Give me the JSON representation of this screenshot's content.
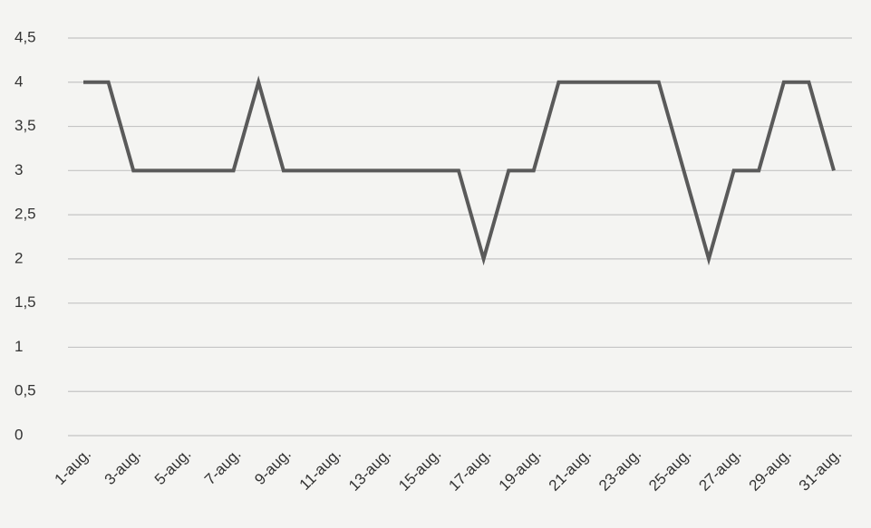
{
  "chart_data": {
    "type": "line",
    "categories": [
      "1-aug.",
      null,
      "3-aug.",
      null,
      "5-aug.",
      null,
      "7-aug.",
      null,
      "9-aug.",
      null,
      "11-aug.",
      null,
      "13-aug.",
      null,
      "15-aug.",
      null,
      "17-aug.",
      null,
      "19-aug.",
      null,
      "21-aug.",
      null,
      "23-aug.",
      null,
      "25-aug.",
      null,
      "27-aug.",
      null,
      "29-aug.",
      null,
      "31-aug."
    ],
    "series": [
      {
        "color": "#5a5a5a",
        "values": [
          4,
          4,
          3,
          3,
          3,
          3,
          3,
          4,
          3,
          3,
          3,
          3,
          3,
          3,
          3,
          3,
          2,
          3,
          3,
          4,
          4,
          4,
          4,
          4,
          3,
          2,
          3,
          3,
          4,
          4,
          3
        ]
      }
    ],
    "ylim": [
      0,
      4.5
    ],
    "yticks": [
      0,
      {
        "value": 0.5,
        "label": "0,5"
      },
      1,
      {
        "value": 1.5,
        "label": "1,5"
      },
      2,
      {
        "value": 2.5,
        "label": "2,5"
      },
      3,
      {
        "value": 3.5,
        "label": "3,5"
      },
      4,
      {
        "value": 4.5,
        "label": "4,5"
      }
    ],
    "grid": true
  }
}
